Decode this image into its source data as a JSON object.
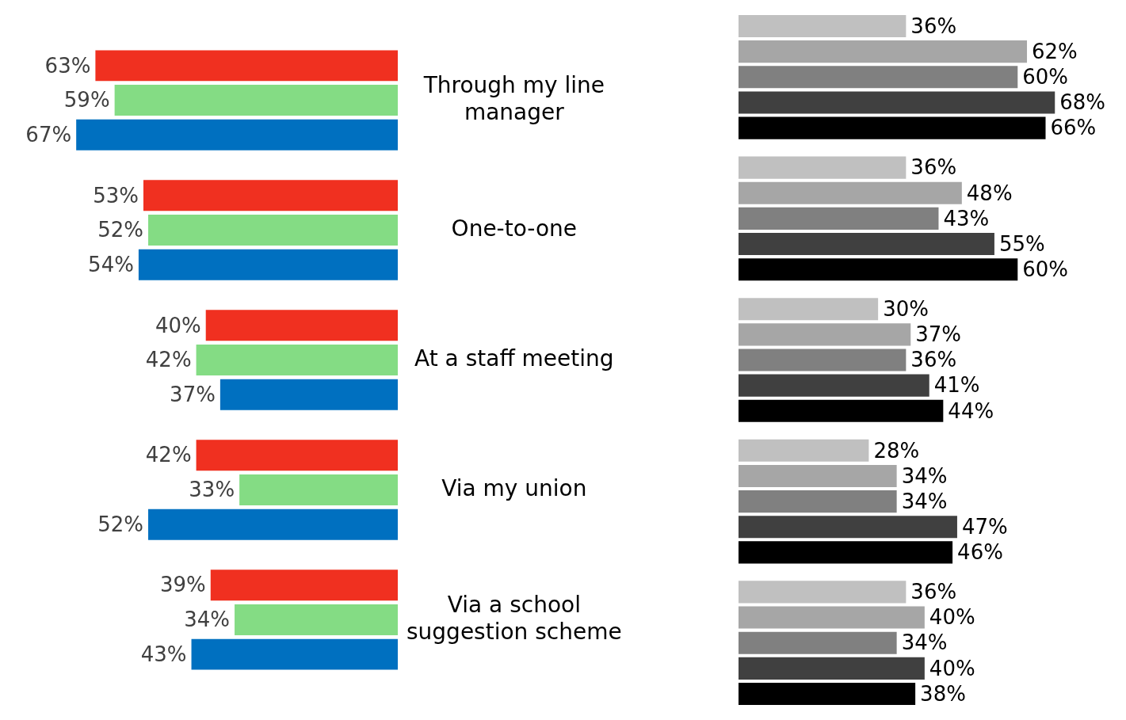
{
  "chart_data": [
    {
      "type": "bar",
      "orientation": "horizontal",
      "categories": [
        "Through my line manager",
        "One-to-one",
        "At a staff meeting",
        "Via my union",
        "Via a school suggestion scheme"
      ],
      "tick_labels": "y",
      "series": [
        {
          "color": "#f03020",
          "values": [
            63,
            53,
            40,
            42,
            39
          ],
          "value_labels": [
            "63%",
            "53%",
            "40%",
            "42%",
            "39%"
          ]
        },
        {
          "color": "#84dc84",
          "values": [
            59,
            52,
            42,
            33,
            34
          ],
          "value_labels": [
            "59%",
            "52%",
            "42%",
            "33%",
            "34%"
          ]
        },
        {
          "color": "#0070c0",
          "values": [
            67,
            54,
            37,
            52,
            43
          ],
          "value_labels": [
            "67%",
            "54%",
            "37%",
            "52%",
            "43%"
          ]
        }
      ]
    },
    {
      "type": "bar",
      "orientation": "horizontal",
      "categories": [
        null,
        null,
        null,
        null,
        null
      ],
      "tick_labels": false,
      "series": [
        {
          "color": "#c0c0c0",
          "values": [
            36,
            36,
            30,
            28,
            36
          ],
          "value_labels": [
            "36%",
            "36%",
            "30%",
            "28%",
            "36%"
          ]
        },
        {
          "color": "#a6a6a6",
          "values": [
            62,
            48,
            37,
            34,
            40
          ],
          "value_labels": [
            "62%",
            "48%",
            "37%",
            "34%",
            "40%"
          ]
        },
        {
          "color": "#808080",
          "values": [
            60,
            43,
            36,
            34,
            34
          ],
          "value_labels": [
            "60%",
            "43%",
            "36%",
            "34%",
            "34%"
          ]
        },
        {
          "color": "#404040",
          "values": [
            68,
            55,
            41,
            47,
            40
          ],
          "value_labels": [
            "68%",
            "55%",
            "41%",
            "47%",
            "40%"
          ]
        },
        {
          "color": "#000000",
          "values": [
            66,
            60,
            44,
            46,
            38
          ],
          "value_labels": [
            "66%",
            "60%",
            "44%",
            "46%",
            "38%"
          ]
        }
      ]
    }
  ]
}
